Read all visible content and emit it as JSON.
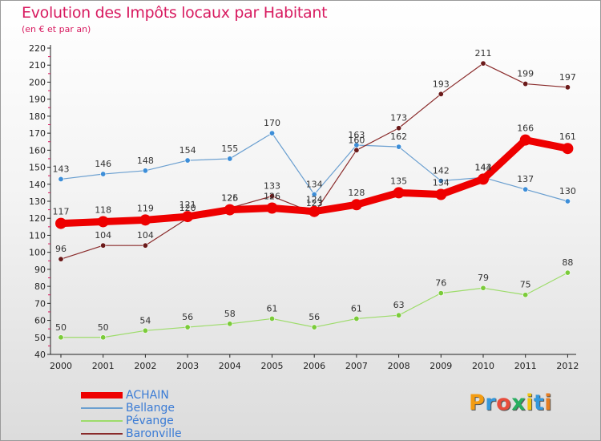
{
  "title": "Evolution des Impôts locaux par Habitant",
  "subtitle": "(en € et par an)",
  "logo": {
    "text": "Proxiti",
    "letters": [
      {
        "ch": "P",
        "color": "#f39c12"
      },
      {
        "ch": "r",
        "color": "#3498db"
      },
      {
        "ch": "o",
        "color": "#e74c3c"
      },
      {
        "ch": "x",
        "color": "#27ae60"
      },
      {
        "ch": "i",
        "color": "#f1c40f"
      },
      {
        "ch": "t",
        "color": "#3498db"
      },
      {
        "ch": "i",
        "color": "#e67e22"
      }
    ]
  },
  "chart_data": {
    "type": "line",
    "x": [
      "2000",
      "2001",
      "2002",
      "2003",
      "2004",
      "2005",
      "2006",
      "2007",
      "2008",
      "2009",
      "2010",
      "2011",
      "2012"
    ],
    "ylim": [
      40,
      220
    ],
    "yticks": [
      40,
      50,
      60,
      70,
      80,
      90,
      100,
      110,
      120,
      130,
      140,
      150,
      160,
      170,
      180,
      190,
      200,
      210,
      220
    ],
    "grid": false,
    "legend_position": "bottom-left",
    "series": [
      {
        "name": "ACHAIN",
        "color": "#ee0000",
        "point_color": "#ee0000",
        "values": [
          117,
          118,
          119,
          121,
          125,
          126,
          124,
          128,
          135,
          134,
          143,
          166,
          161
        ],
        "width": 9,
        "marker": 7
      },
      {
        "name": "Bellange",
        "color": "#6a9fd0",
        "point_color": "#3d8ed8",
        "values": [
          143,
          146,
          148,
          154,
          155,
          170,
          134,
          163,
          162,
          142,
          144,
          137,
          130
        ],
        "width": 1.2,
        "marker": 3.2
      },
      {
        "name": "Pévange",
        "color": "#9ddc6a",
        "point_color": "#7bcb3a",
        "values": [
          50,
          50,
          54,
          56,
          58,
          61,
          56,
          61,
          63,
          76,
          79,
          75,
          88
        ],
        "width": 1.2,
        "marker": 3.2
      },
      {
        "name": "Baronville",
        "color": "#8a2b2b",
        "point_color": "#6b1a1a",
        "values": [
          96,
          104,
          104,
          120,
          126,
          133,
          123,
          160,
          173,
          193,
          211,
          199,
          197
        ],
        "width": 1.2,
        "marker": 3.2
      }
    ]
  }
}
